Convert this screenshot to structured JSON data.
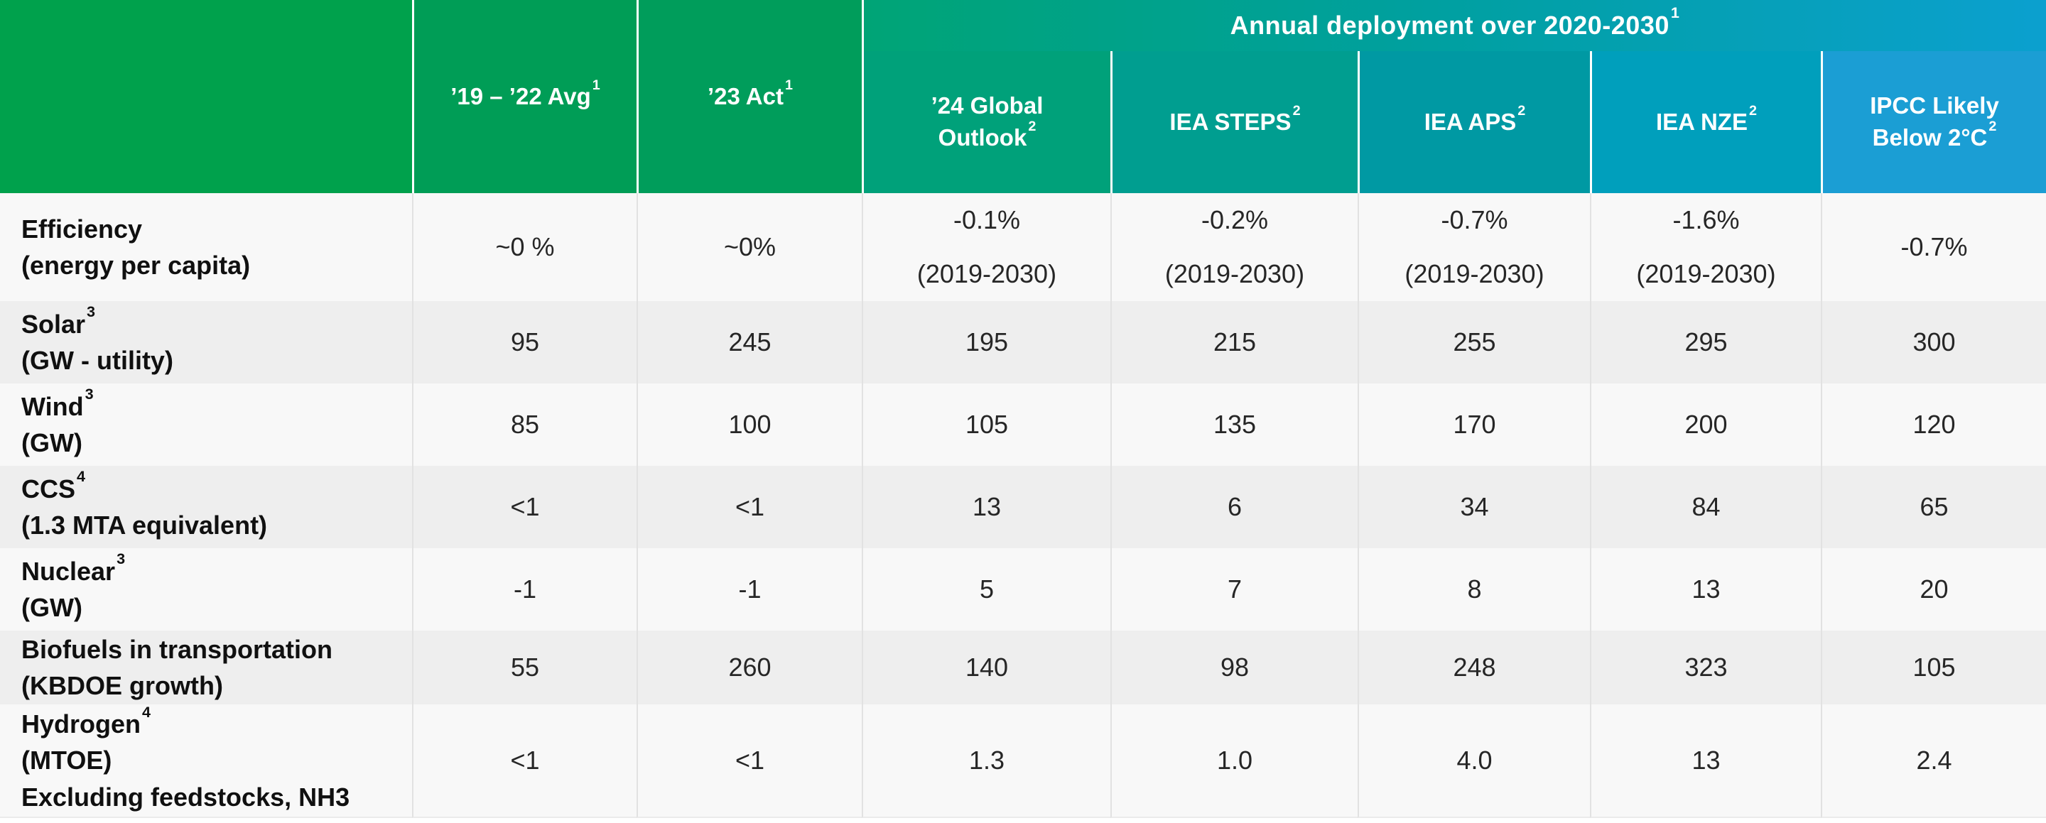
{
  "chart_data": {
    "type": "table",
    "title": "Annual deployment over 2020-2030",
    "group_header": {
      "text": "Annual deployment over 2020-2030",
      "sup": "1",
      "spans_columns": [
        "'24 Global Outlook",
        "IEA STEPS",
        "IEA APS",
        "IEA NZE",
        "IPCC Likely Below 2°C"
      ]
    },
    "columns": [
      {
        "id": "metric",
        "lines": [],
        "sup": "",
        "bg": "#00A14C"
      },
      {
        "id": "avg-19-22",
        "lines": [
          "’19 – ’22 Avg"
        ],
        "sup": "1",
        "bg": "#009D56"
      },
      {
        "id": "act-23",
        "lines": [
          "’23 Act"
        ],
        "sup": "1",
        "bg": "#009D5B"
      },
      {
        "id": "outlook-24",
        "lines": [
          "’24 Global",
          "Outlook"
        ],
        "sup": "2",
        "bg": "#00A17A"
      },
      {
        "id": "iea-steps",
        "lines": [
          "IEA STEPS"
        ],
        "sup": "2",
        "bg": "#009E90"
      },
      {
        "id": "iea-aps",
        "lines": [
          "IEA APS"
        ],
        "sup": "2",
        "bg": "#0099A3"
      },
      {
        "id": "iea-nze",
        "lines": [
          "IEA NZE"
        ],
        "sup": "2",
        "bg": "#009FBC"
      },
      {
        "id": "ipcc-b2c",
        "lines": [
          "IPCC Likely",
          "Below 2°C"
        ],
        "sup": "2",
        "bg": "#1B9ED4"
      }
    ],
    "rows": [
      {
        "id": "efficiency",
        "title": "Efficiency",
        "title_sup": "",
        "subtitle_lines": [
          "(energy per capita)"
        ],
        "cells": [
          {
            "lines": [
              "~0 %"
            ]
          },
          {
            "lines": [
              "~0%"
            ]
          },
          {
            "lines": [
              "-0.1%",
              "(2019-2030)"
            ]
          },
          {
            "lines": [
              "-0.2%",
              "(2019-2030)"
            ]
          },
          {
            "lines": [
              "-0.7%",
              "(2019-2030)"
            ]
          },
          {
            "lines": [
              "-1.6%",
              "(2019-2030)"
            ]
          },
          {
            "lines": [
              "-0.7%"
            ]
          }
        ]
      },
      {
        "id": "solar",
        "title": "Solar",
        "title_sup": "3",
        "subtitle_lines": [
          "(GW - utility)"
        ],
        "cells": [
          {
            "lines": [
              "95"
            ]
          },
          {
            "lines": [
              "245"
            ]
          },
          {
            "lines": [
              "195"
            ]
          },
          {
            "lines": [
              "215"
            ]
          },
          {
            "lines": [
              "255"
            ]
          },
          {
            "lines": [
              "295"
            ]
          },
          {
            "lines": [
              "300"
            ]
          }
        ]
      },
      {
        "id": "wind",
        "title": "Wind",
        "title_sup": "3",
        "subtitle_lines": [
          "(GW)"
        ],
        "cells": [
          {
            "lines": [
              "85"
            ]
          },
          {
            "lines": [
              "100"
            ]
          },
          {
            "lines": [
              "105"
            ]
          },
          {
            "lines": [
              "135"
            ]
          },
          {
            "lines": [
              "170"
            ]
          },
          {
            "lines": [
              "200"
            ]
          },
          {
            "lines": [
              "120"
            ]
          }
        ]
      },
      {
        "id": "ccs",
        "title": "CCS",
        "title_sup": "4",
        "subtitle_lines": [
          "(1.3 MTA equivalent)"
        ],
        "cells": [
          {
            "lines": [
              "<1"
            ]
          },
          {
            "lines": [
              "<1"
            ]
          },
          {
            "lines": [
              "13"
            ]
          },
          {
            "lines": [
              "6"
            ]
          },
          {
            "lines": [
              "34"
            ]
          },
          {
            "lines": [
              "84"
            ]
          },
          {
            "lines": [
              "65"
            ]
          }
        ]
      },
      {
        "id": "nuclear",
        "title": "Nuclear",
        "title_sup": "3",
        "subtitle_lines": [
          "(GW)"
        ],
        "cells": [
          {
            "lines": [
              "-1"
            ]
          },
          {
            "lines": [
              "-1"
            ]
          },
          {
            "lines": [
              "5"
            ]
          },
          {
            "lines": [
              "7"
            ]
          },
          {
            "lines": [
              "8"
            ]
          },
          {
            "lines": [
              "13"
            ]
          },
          {
            "lines": [
              "20"
            ]
          }
        ]
      },
      {
        "id": "biofuels",
        "title": "Biofuels in transportation",
        "title_sup": "",
        "subtitle_lines": [
          "(KBDOE growth)"
        ],
        "cells": [
          {
            "lines": [
              "55"
            ]
          },
          {
            "lines": [
              "260"
            ]
          },
          {
            "lines": [
              "140"
            ]
          },
          {
            "lines": [
              "98"
            ]
          },
          {
            "lines": [
              "248"
            ]
          },
          {
            "lines": [
              "323"
            ]
          },
          {
            "lines": [
              "105"
            ]
          }
        ]
      },
      {
        "id": "hydrogen",
        "title": "Hydrogen",
        "title_sup": "4",
        "subtitle_lines": [
          "(MTOE)",
          "Excluding feedstocks, NH3"
        ],
        "cells": [
          {
            "lines": [
              "<1"
            ]
          },
          {
            "lines": [
              "<1"
            ]
          },
          {
            "lines": [
              "1.3"
            ]
          },
          {
            "lines": [
              "1.0"
            ]
          },
          {
            "lines": [
              "4.0"
            ]
          },
          {
            "lines": [
              "13"
            ]
          },
          {
            "lines": [
              "2.4"
            ]
          }
        ]
      }
    ]
  },
  "colors": {
    "banner_gradient_start": "#00A476",
    "banner_gradient_mid": "#00A0A0",
    "banner_gradient_end": "#0BA0CF",
    "row_bg_light": "#f8f8f8",
    "row_bg_dark": "#eeeeee",
    "body_divider": "#e2e2e2",
    "header_divider": "#ffffff",
    "body_text": "#262626"
  }
}
